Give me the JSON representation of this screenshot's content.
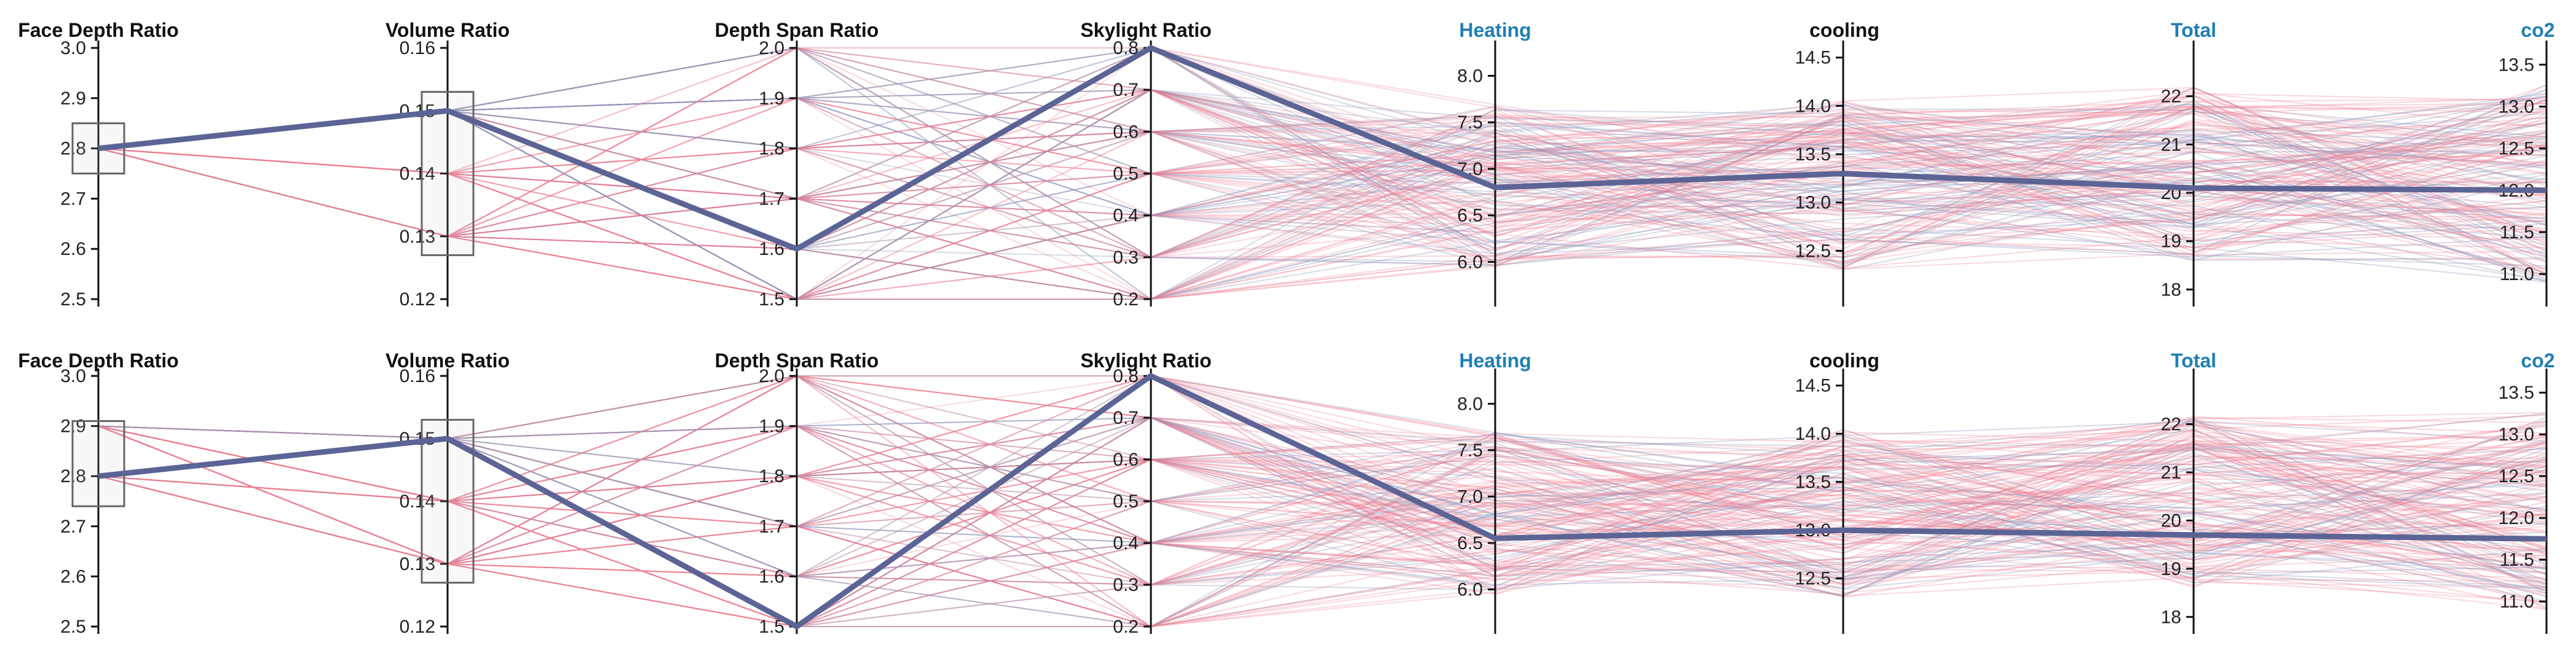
{
  "colors": {
    "pink": "#ef7f93",
    "blue": "#8e97be",
    "highlight": "#5b6494",
    "axis_black": "#111111",
    "axis_blue": "#1f7fb4",
    "title_blue": "#1f7fb4"
  },
  "chart_data": [
    {
      "type": "parallel-coordinates",
      "panel": "top",
      "axes": [
        {
          "name": "Face Depth Ratio",
          "domain": [
            2.5,
            3.0
          ],
          "ticks": [
            2.5,
            2.6,
            2.7,
            2.8,
            2.9,
            3.0
          ],
          "tick_labels": [
            "2.5",
            "2.6",
            "2.7",
            "2.8",
            "2.9",
            "3.0"
          ],
          "style": "black",
          "brush": [
            2.75,
            2.85
          ]
        },
        {
          "name": "Volume Ratio",
          "domain": [
            0.12,
            0.16
          ],
          "ticks": [
            0.12,
            0.13,
            0.14,
            0.15,
            0.16
          ],
          "tick_labels": [
            "0.12",
            "0.13",
            "0.14",
            "0.15",
            "0.16"
          ],
          "style": "black",
          "brush": [
            0.127,
            0.153
          ]
        },
        {
          "name": "Depth Span Ratio",
          "domain": [
            1.5,
            2.0
          ],
          "ticks": [
            1.5,
            1.6,
            1.7,
            1.8,
            1.9,
            2.0
          ],
          "tick_labels": [
            "1.5",
            "1.6",
            "1.7",
            "1.8",
            "1.9",
            "2.0"
          ],
          "style": "black"
        },
        {
          "name": "Skylight Ratio",
          "domain": [
            0.2,
            0.8
          ],
          "ticks": [
            0.2,
            0.3,
            0.4,
            0.5,
            0.6,
            0.7,
            0.8
          ],
          "tick_labels": [
            "0.2",
            "0.3",
            "0.4",
            "0.5",
            "0.6",
            "0.7",
            "0.8"
          ],
          "style": "black"
        },
        {
          "name": "Heating",
          "domain": [
            5.6,
            8.3
          ],
          "ticks": [
            6.0,
            6.5,
            7.0,
            7.5,
            8.0
          ],
          "tick_labels": [
            "6.0",
            "6.5",
            "7.0",
            "7.5",
            "8.0"
          ],
          "style": "blue"
        },
        {
          "name": "cooling",
          "domain": [
            12.0,
            14.6
          ],
          "ticks": [
            12.5,
            13.0,
            13.5,
            14.0,
            14.5
          ],
          "tick_labels": [
            "12.5",
            "13.0",
            "13.5",
            "14.0",
            "14.5"
          ],
          "style": "black"
        },
        {
          "name": "Total",
          "domain": [
            17.8,
            23.0
          ],
          "ticks": [
            18,
            19,
            20,
            21,
            22
          ],
          "tick_labels": [
            "18",
            "19",
            "20",
            "21",
            "22"
          ],
          "style": "blue"
        },
        {
          "name": "co2",
          "domain": [
            10.7,
            13.7
          ],
          "ticks": [
            11.0,
            11.5,
            12.0,
            12.5,
            13.0,
            13.5
          ],
          "tick_labels": [
            "11.0",
            "11.5",
            "12.0",
            "12.5",
            "13.0",
            "13.5"
          ],
          "style": "blue"
        }
      ],
      "highlight": {
        "values": [
          2.8,
          0.15,
          1.6,
          0.8,
          6.8,
          13.3,
          20.1,
          12.0
        ]
      }
    },
    {
      "type": "parallel-coordinates",
      "panel": "bottom",
      "axes": [
        {
          "name": "Face Depth Ratio",
          "domain": [
            2.5,
            3.0
          ],
          "ticks": [
            2.5,
            2.6,
            2.7,
            2.8,
            2.9,
            3.0
          ],
          "tick_labels": [
            "2.5",
            "2.6",
            "2.7",
            "2.8",
            "2.9",
            "3.0"
          ],
          "style": "black",
          "brush": [
            2.74,
            2.91
          ]
        },
        {
          "name": "Volume Ratio",
          "domain": [
            0.12,
            0.16
          ],
          "ticks": [
            0.12,
            0.13,
            0.14,
            0.15,
            0.16
          ],
          "tick_labels": [
            "0.12",
            "0.13",
            "0.14",
            "0.15",
            "0.16"
          ],
          "style": "black",
          "brush": [
            0.127,
            0.153
          ]
        },
        {
          "name": "Depth Span Ratio",
          "domain": [
            1.5,
            2.0
          ],
          "ticks": [
            1.5,
            1.6,
            1.7,
            1.8,
            1.9,
            2.0
          ],
          "tick_labels": [
            "1.5",
            "1.6",
            "1.7",
            "1.8",
            "1.9",
            "2.0"
          ],
          "style": "black"
        },
        {
          "name": "Skylight Ratio",
          "domain": [
            0.2,
            0.8
          ],
          "ticks": [
            0.2,
            0.3,
            0.4,
            0.5,
            0.6,
            0.7,
            0.8
          ],
          "tick_labels": [
            "0.2",
            "0.3",
            "0.4",
            "0.5",
            "0.6",
            "0.7",
            "0.8"
          ],
          "style": "black"
        },
        {
          "name": "Heating",
          "domain": [
            5.6,
            8.3
          ],
          "ticks": [
            6.0,
            6.5,
            7.0,
            7.5,
            8.0
          ],
          "tick_labels": [
            "6.0",
            "6.5",
            "7.0",
            "7.5",
            "8.0"
          ],
          "style": "blue"
        },
        {
          "name": "cooling",
          "domain": [
            12.0,
            14.6
          ],
          "ticks": [
            12.5,
            13.0,
            13.5,
            14.0,
            14.5
          ],
          "tick_labels": [
            "12.5",
            "13.0",
            "13.5",
            "14.0",
            "14.5"
          ],
          "style": "black"
        },
        {
          "name": "Total",
          "domain": [
            17.8,
            23.0
          ],
          "ticks": [
            18,
            19,
            20,
            21,
            22
          ],
          "tick_labels": [
            "18",
            "19",
            "20",
            "21",
            "22"
          ],
          "style": "blue"
        },
        {
          "name": "co2",
          "domain": [
            10.7,
            13.7
          ],
          "ticks": [
            11.0,
            11.5,
            12.0,
            12.5,
            13.0,
            13.5
          ],
          "tick_labels": [
            "11.0",
            "11.5",
            "12.0",
            "12.5",
            "13.0",
            "13.5"
          ],
          "style": "blue"
        }
      ],
      "highlight": {
        "values": [
          2.8,
          0.15,
          1.5,
          0.8,
          6.55,
          13.0,
          19.7,
          11.75
        ]
      }
    }
  ]
}
